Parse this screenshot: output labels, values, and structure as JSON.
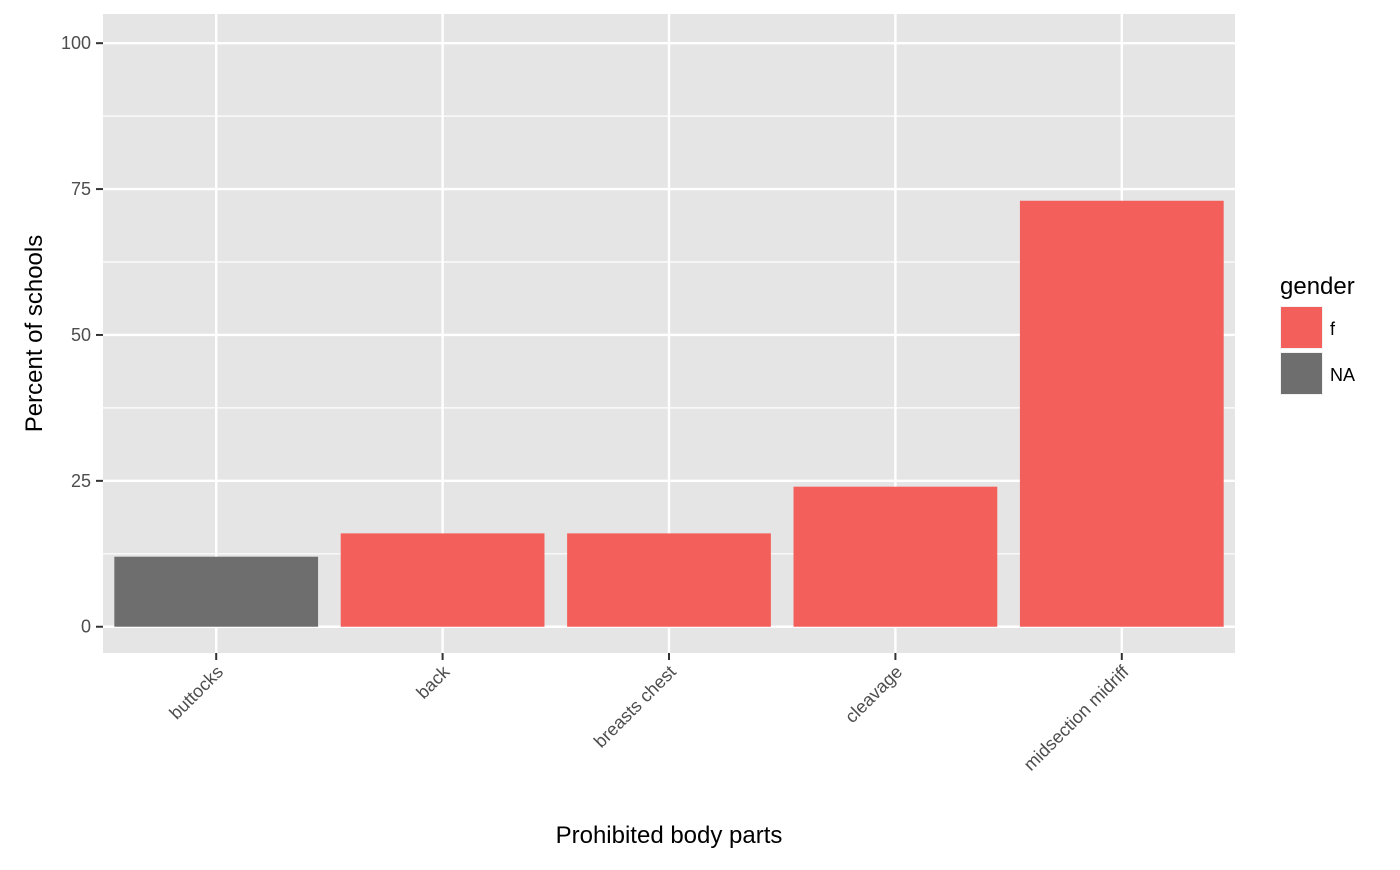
{
  "chart_data": {
    "type": "bar",
    "title": "",
    "xlabel": "Prohibited body parts",
    "ylabel": "Percent of schools",
    "categories": [
      "buttocks",
      "back",
      "breasts chest",
      "cleavage",
      "midsection midriff"
    ],
    "values": [
      12,
      16,
      16,
      24,
      73
    ],
    "fill_group": [
      "NA",
      "f",
      "f",
      "f",
      "f"
    ],
    "ylim": [
      -4.5,
      105
    ],
    "yticks": [
      0,
      25,
      50,
      75,
      100
    ],
    "ytick_labels": [
      "0",
      "25",
      "50",
      "75",
      "100"
    ],
    "grid": true,
    "legend": {
      "title": "gender",
      "placement": "right",
      "entries": [
        {
          "label": "f",
          "color": "#f35f5b"
        },
        {
          "label": "NA",
          "color": "#6e6e6e"
        }
      ]
    },
    "colors": {
      "f": "#f35f5b",
      "NA": "#6e6e6e",
      "panel": "#e5e5e5",
      "grid": "#ffffff"
    }
  }
}
